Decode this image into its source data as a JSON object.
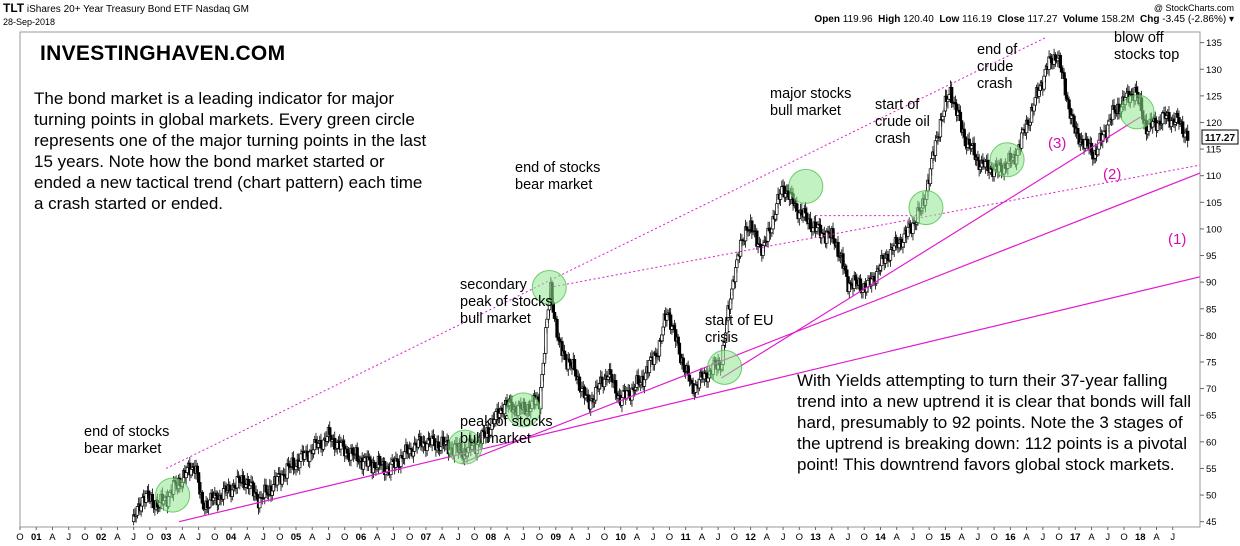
{
  "header": {
    "ticker": "TLT",
    "name": "iShares 20+ Year Treasury Bond ETF",
    "exchange": "Nasdaq GM",
    "date": "28-Sep-2018",
    "credit": "@ StockCharts.com",
    "open_label": "Open",
    "open": "119.96",
    "high_label": "High",
    "high": "120.40",
    "low_label": "Low",
    "low": "116.19",
    "close_label": "Close",
    "close": "117.27",
    "volume_label": "Volume",
    "volume": "158.2M",
    "chg_label": "Chg",
    "chg": "-3.45 (-2.86%)"
  },
  "brand": "INVESTINGHAVEN.COM",
  "intro_text": "The bond market is a leading indicator for major turning points in global markets. Every green circle represents one of the major turning points in the last 15 years. Note how the bond market started or ended a new tactical trend (chart pattern) each time a crash started or ended.",
  "conclusion_text": "With Yields attempting to turn their 37-year falling trend into a new uptrend it is clear that bonds will fall hard, presumably to 92 points. Note the 3 stages of the uptrend is breaking down: 112 points is a pivotal point! This downtrend favors global stock markets.",
  "annotations": {
    "a1": "end of stocks bear market",
    "a2": "peak of stocks bull market",
    "a3": "secondary peak of stocks bull market",
    "a4": "end of stocks bear market",
    "a5": "start of EU crisis",
    "a6": "major stocks bull market",
    "a7": "start of crude oil crash",
    "a8": "end of crude crash",
    "a9": "blow off stocks top"
  },
  "stages": [
    "(1)",
    "(2)",
    "(3)"
  ],
  "colors": {
    "trendline": "#e01bd0",
    "circle_fill": "#90e890",
    "circle_stroke": "#3cb83c",
    "price_tag_bg": "#ffffff"
  },
  "chart_data": {
    "type": "candlestick",
    "title": "TLT iShares 20+ Year Treasury Bond ETF Nasdaq GM",
    "y_axis_side": "right",
    "ylim": [
      44,
      137
    ],
    "y_ticks": [
      45,
      50,
      55,
      60,
      65,
      70,
      75,
      80,
      85,
      90,
      95,
      100,
      105,
      110,
      115,
      120,
      125,
      130,
      135
    ],
    "last_price": "117.27",
    "x_range": [
      "2000-10",
      "2018-09"
    ],
    "x_ticks": [
      "O",
      "01",
      "A",
      "J",
      "O",
      "02",
      "A",
      "J",
      "O",
      "03",
      "A",
      "J",
      "O",
      "04",
      "A",
      "J",
      "O",
      "05",
      "A",
      "J",
      "O",
      "06",
      "A",
      "J",
      "O",
      "07",
      "A",
      "J",
      "O",
      "08",
      "A",
      "J",
      "O",
      "09",
      "A",
      "J",
      "O",
      "10",
      "A",
      "J",
      "O",
      "11",
      "A",
      "J",
      "O",
      "12",
      "A",
      "J",
      "O",
      "13",
      "A",
      "J",
      "O",
      "14",
      "A",
      "J",
      "O",
      "15",
      "A",
      "J",
      "O",
      "16",
      "A",
      "J",
      "O",
      "17",
      "A",
      "J",
      "O",
      "18",
      "A",
      "J"
    ],
    "x_tick_bold": [
      "01",
      "02",
      "03",
      "04",
      "05",
      "06",
      "07",
      "08",
      "09",
      "10",
      "11",
      "12",
      "13",
      "14",
      "15",
      "16",
      "17",
      "18"
    ],
    "price_path": [
      [
        2002.5,
        45
      ],
      [
        2002.65,
        50
      ],
      [
        2002.9,
        48
      ],
      [
        2003.1,
        51
      ],
      [
        2003.45,
        56
      ],
      [
        2003.55,
        48
      ],
      [
        2003.85,
        50
      ],
      [
        2004.2,
        53
      ],
      [
        2004.45,
        49
      ],
      [
        2004.8,
        54
      ],
      [
        2005.1,
        57
      ],
      [
        2005.5,
        61
      ],
      [
        2005.8,
        58
      ],
      [
        2006.1,
        56
      ],
      [
        2006.45,
        55
      ],
      [
        2006.8,
        59
      ],
      [
        2007.0,
        60
      ],
      [
        2007.4,
        59
      ],
      [
        2007.6,
        58
      ],
      [
        2007.9,
        61
      ],
      [
        2008.2,
        67
      ],
      [
        2008.5,
        66
      ],
      [
        2008.75,
        68
      ],
      [
        2008.92,
        89
      ],
      [
        2009.05,
        78
      ],
      [
        2009.3,
        73
      ],
      [
        2009.5,
        67
      ],
      [
        2009.8,
        73
      ],
      [
        2010.0,
        68
      ],
      [
        2010.3,
        71
      ],
      [
        2010.6,
        78
      ],
      [
        2010.72,
        85
      ],
      [
        2010.9,
        77
      ],
      [
        2011.1,
        70
      ],
      [
        2011.35,
        73
      ],
      [
        2011.55,
        75
      ],
      [
        2011.75,
        92
      ],
      [
        2011.95,
        101
      ],
      [
        2012.2,
        96
      ],
      [
        2012.5,
        108
      ],
      [
        2012.7,
        104
      ],
      [
        2013.0,
        100
      ],
      [
        2013.3,
        98
      ],
      [
        2013.5,
        90
      ],
      [
        2013.8,
        89
      ],
      [
        2014.1,
        95
      ],
      [
        2014.4,
        99
      ],
      [
        2014.65,
        104
      ],
      [
        2014.92,
        120
      ],
      [
        2015.08,
        126
      ],
      [
        2015.3,
        117
      ],
      [
        2015.55,
        112
      ],
      [
        2015.8,
        111
      ],
      [
        2016.05,
        113
      ],
      [
        2016.3,
        121
      ],
      [
        2016.55,
        130
      ],
      [
        2016.72,
        133
      ],
      [
        2016.85,
        126
      ],
      [
        2017.0,
        118
      ],
      [
        2017.3,
        114
      ],
      [
        2017.55,
        121
      ],
      [
        2017.75,
        124
      ],
      [
        2017.92,
        126
      ],
      [
        2018.1,
        119
      ],
      [
        2018.4,
        121
      ],
      [
        2018.6,
        120
      ],
      [
        2018.74,
        117.27
      ]
    ],
    "trendlines": [
      {
        "name": "(1)",
        "style": "solid",
        "from": [
          2003.2,
          45
        ],
        "to": [
          2018.92,
          91
        ]
      },
      {
        "name": "(2)",
        "style": "solid",
        "from": [
          2007.55,
          56
        ],
        "to": [
          2018.92,
          110.5
        ]
      },
      {
        "name": "(3)",
        "style": "solid",
        "from": [
          2011.55,
          72
        ],
        "to": [
          2018.0,
          121
        ]
      },
      {
        "name": "",
        "style": "dotted",
        "from": [
          2003.0,
          55
        ],
        "to": [
          2016.55,
          136
        ]
      },
      {
        "name": "",
        "style": "dotted",
        "from": [
          2008.9,
          89
        ],
        "to": [
          2018.92,
          112
        ]
      },
      {
        "name": "",
        "style": "dotted",
        "from": [
          2013.0,
          102.5
        ],
        "to": [
          2014.62,
          102.5
        ]
      }
    ],
    "turning_points": [
      [
        2003.1,
        50
      ],
      [
        2007.6,
        59
      ],
      [
        2008.5,
        66
      ],
      [
        2008.9,
        89
      ],
      [
        2011.6,
        74
      ],
      [
        2012.85,
        108
      ],
      [
        2014.7,
        104
      ],
      [
        2015.95,
        113
      ],
      [
        2017.95,
        122
      ]
    ]
  }
}
